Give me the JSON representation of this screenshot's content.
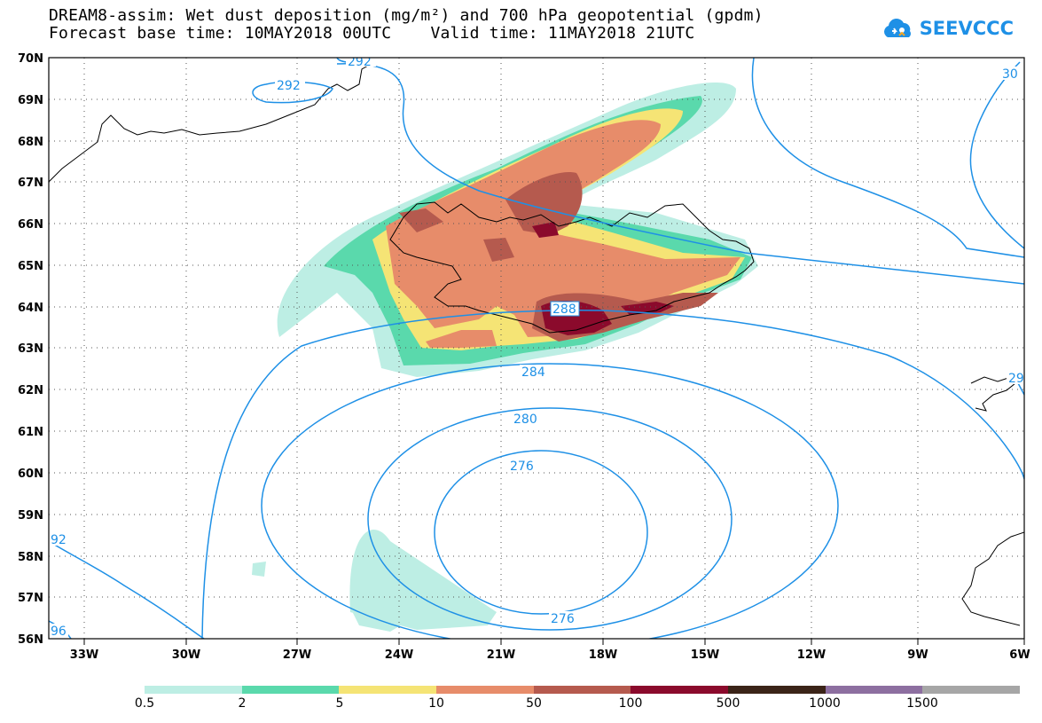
{
  "title": {
    "line1": "DREAM8-assim: Wet dust deposition (mg/m²) and 700 hPa geopotential (gpdm)",
    "line2": "Forecast base time: 10MAY2018 00UTC    Valid time: 11MAY2018 21UTC"
  },
  "logo": {
    "text": "SEEVCCC",
    "icon": "cloud-icon",
    "color": "#1e90e6"
  },
  "map": {
    "lat_labels": [
      "70N",
      "69N",
      "68N",
      "67N",
      "66N",
      "65N",
      "64N",
      "63N",
      "62N",
      "61N",
      "60N",
      "59N",
      "58N",
      "57N",
      "56N"
    ],
    "lon_labels": [
      "33W",
      "30W",
      "27W",
      "24W",
      "21W",
      "18W",
      "15W",
      "12W",
      "9W",
      "6W"
    ],
    "contour_labels": [
      "292",
      "292",
      "288",
      "284",
      "280",
      "276",
      "276",
      "30",
      "29",
      "92",
      "96"
    ],
    "contour_color": "#1e90e6"
  },
  "legend": {
    "colors": [
      "#bdeee4",
      "#5ad9ac",
      "#f5e475",
      "#e78c6a",
      "#b55a4e",
      "#8b0a2c",
      "#3b2418",
      "#8d6fa0",
      "#a6a6a6"
    ],
    "labels": [
      "0.5",
      "2",
      "5",
      "10",
      "50",
      "100",
      "500",
      "1000",
      "1500"
    ]
  }
}
